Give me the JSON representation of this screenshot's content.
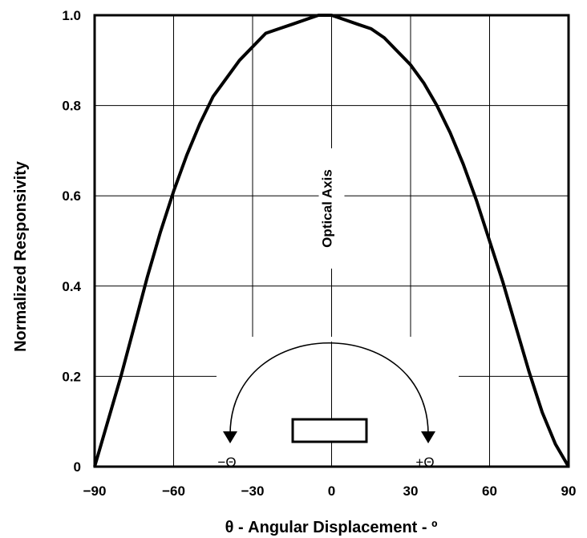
{
  "chart_data": {
    "type": "line",
    "xlabel": "θ - Angular Displacement - º",
    "ylabel": "Normalized Responsivity",
    "xlim": [
      -90,
      90
    ],
    "ylim": [
      0,
      1.0
    ],
    "x_ticks": [
      "-90",
      "-60",
      "-30",
      "0",
      "30",
      "60",
      "90"
    ],
    "y_ticks": [
      "0",
      "0.2",
      "0.4",
      "0.6",
      "0.8",
      "1.0"
    ],
    "grid": true,
    "series": [
      {
        "color": "#000000",
        "x": [
          -90,
          -85,
          -80,
          -75,
          -70,
          -65,
          -60,
          -55,
          -50,
          -45,
          -40,
          -35,
          -30,
          -25,
          -20,
          -15,
          -10,
          -5,
          0,
          5,
          10,
          15,
          20,
          25,
          30,
          35,
          40,
          45,
          50,
          55,
          60,
          65,
          70,
          75,
          80,
          85,
          90
        ],
        "y": [
          0.0,
          0.1,
          0.2,
          0.31,
          0.42,
          0.52,
          0.61,
          0.69,
          0.76,
          0.82,
          0.86,
          0.9,
          0.93,
          0.96,
          0.97,
          0.98,
          0.99,
          1.0,
          1.0,
          0.99,
          0.98,
          0.97,
          0.95,
          0.92,
          0.89,
          0.85,
          0.8,
          0.74,
          0.67,
          0.59,
          0.5,
          0.41,
          0.31,
          0.21,
          0.12,
          0.05,
          0.0
        ]
      }
    ],
    "annotations": {
      "optical_axis": "Optical Axis",
      "minus_theta": "−Θ",
      "plus_theta": "+Θ"
    }
  }
}
